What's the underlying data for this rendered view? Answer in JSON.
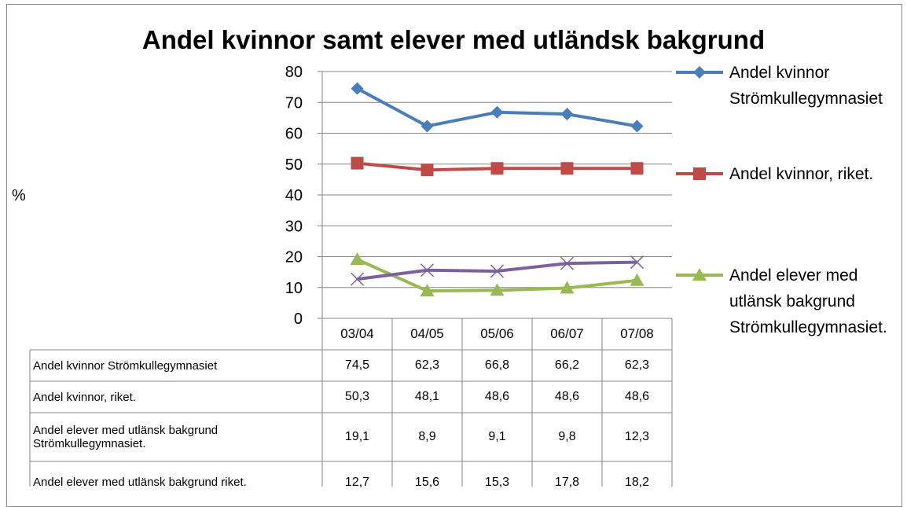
{
  "chart_data": {
    "type": "line",
    "title": "Andel kvinnor samt elever med utländsk bakgrund",
    "ylabel": "%",
    "categories": [
      "03/04",
      "04/05",
      "05/06",
      "06/07",
      "07/08"
    ],
    "ylim": [
      0,
      80
    ],
    "yticks": [
      0,
      10,
      20,
      30,
      40,
      50,
      60,
      70,
      80
    ],
    "grid": true,
    "legend": "right",
    "series": [
      {
        "name": "Andel kvinnor Strömkullegymnasiet",
        "color": "#4a7ebb",
        "marker": "diamond",
        "in_legend": true,
        "values": [
          74.5,
          62.3,
          66.8,
          66.2,
          62.3
        ],
        "value_labels": [
          "74,5",
          "62,3",
          "66,8",
          "66,2",
          "62,3"
        ]
      },
      {
        "name": "Andel kvinnor, riket.",
        "color": "#be4b48",
        "marker": "square",
        "in_legend": true,
        "values": [
          50.3,
          48.1,
          48.6,
          48.6,
          48.6
        ],
        "value_labels": [
          "50,3",
          "48,1",
          "48,6",
          "48,6",
          "48,6"
        ]
      },
      {
        "name": "Andel elever med utlänsk bakgrund Strömkullegymnasiet.",
        "color": "#98b954",
        "marker": "triangle",
        "in_legend": true,
        "values": [
          19.1,
          8.9,
          9.1,
          9.8,
          12.3
        ],
        "value_labels": [
          "19,1",
          "8,9",
          "9,1",
          "9,8",
          "12,3"
        ]
      },
      {
        "name": "Andel elever med utlänsk bakgrund riket.",
        "color": "#7d60a0",
        "marker": "x",
        "in_legend": false,
        "values": [
          12.7,
          15.6,
          15.3,
          17.8,
          18.2
        ],
        "value_labels": [
          "12,7",
          "15,6",
          "15,3",
          "17,8",
          "18,2"
        ]
      }
    ]
  }
}
